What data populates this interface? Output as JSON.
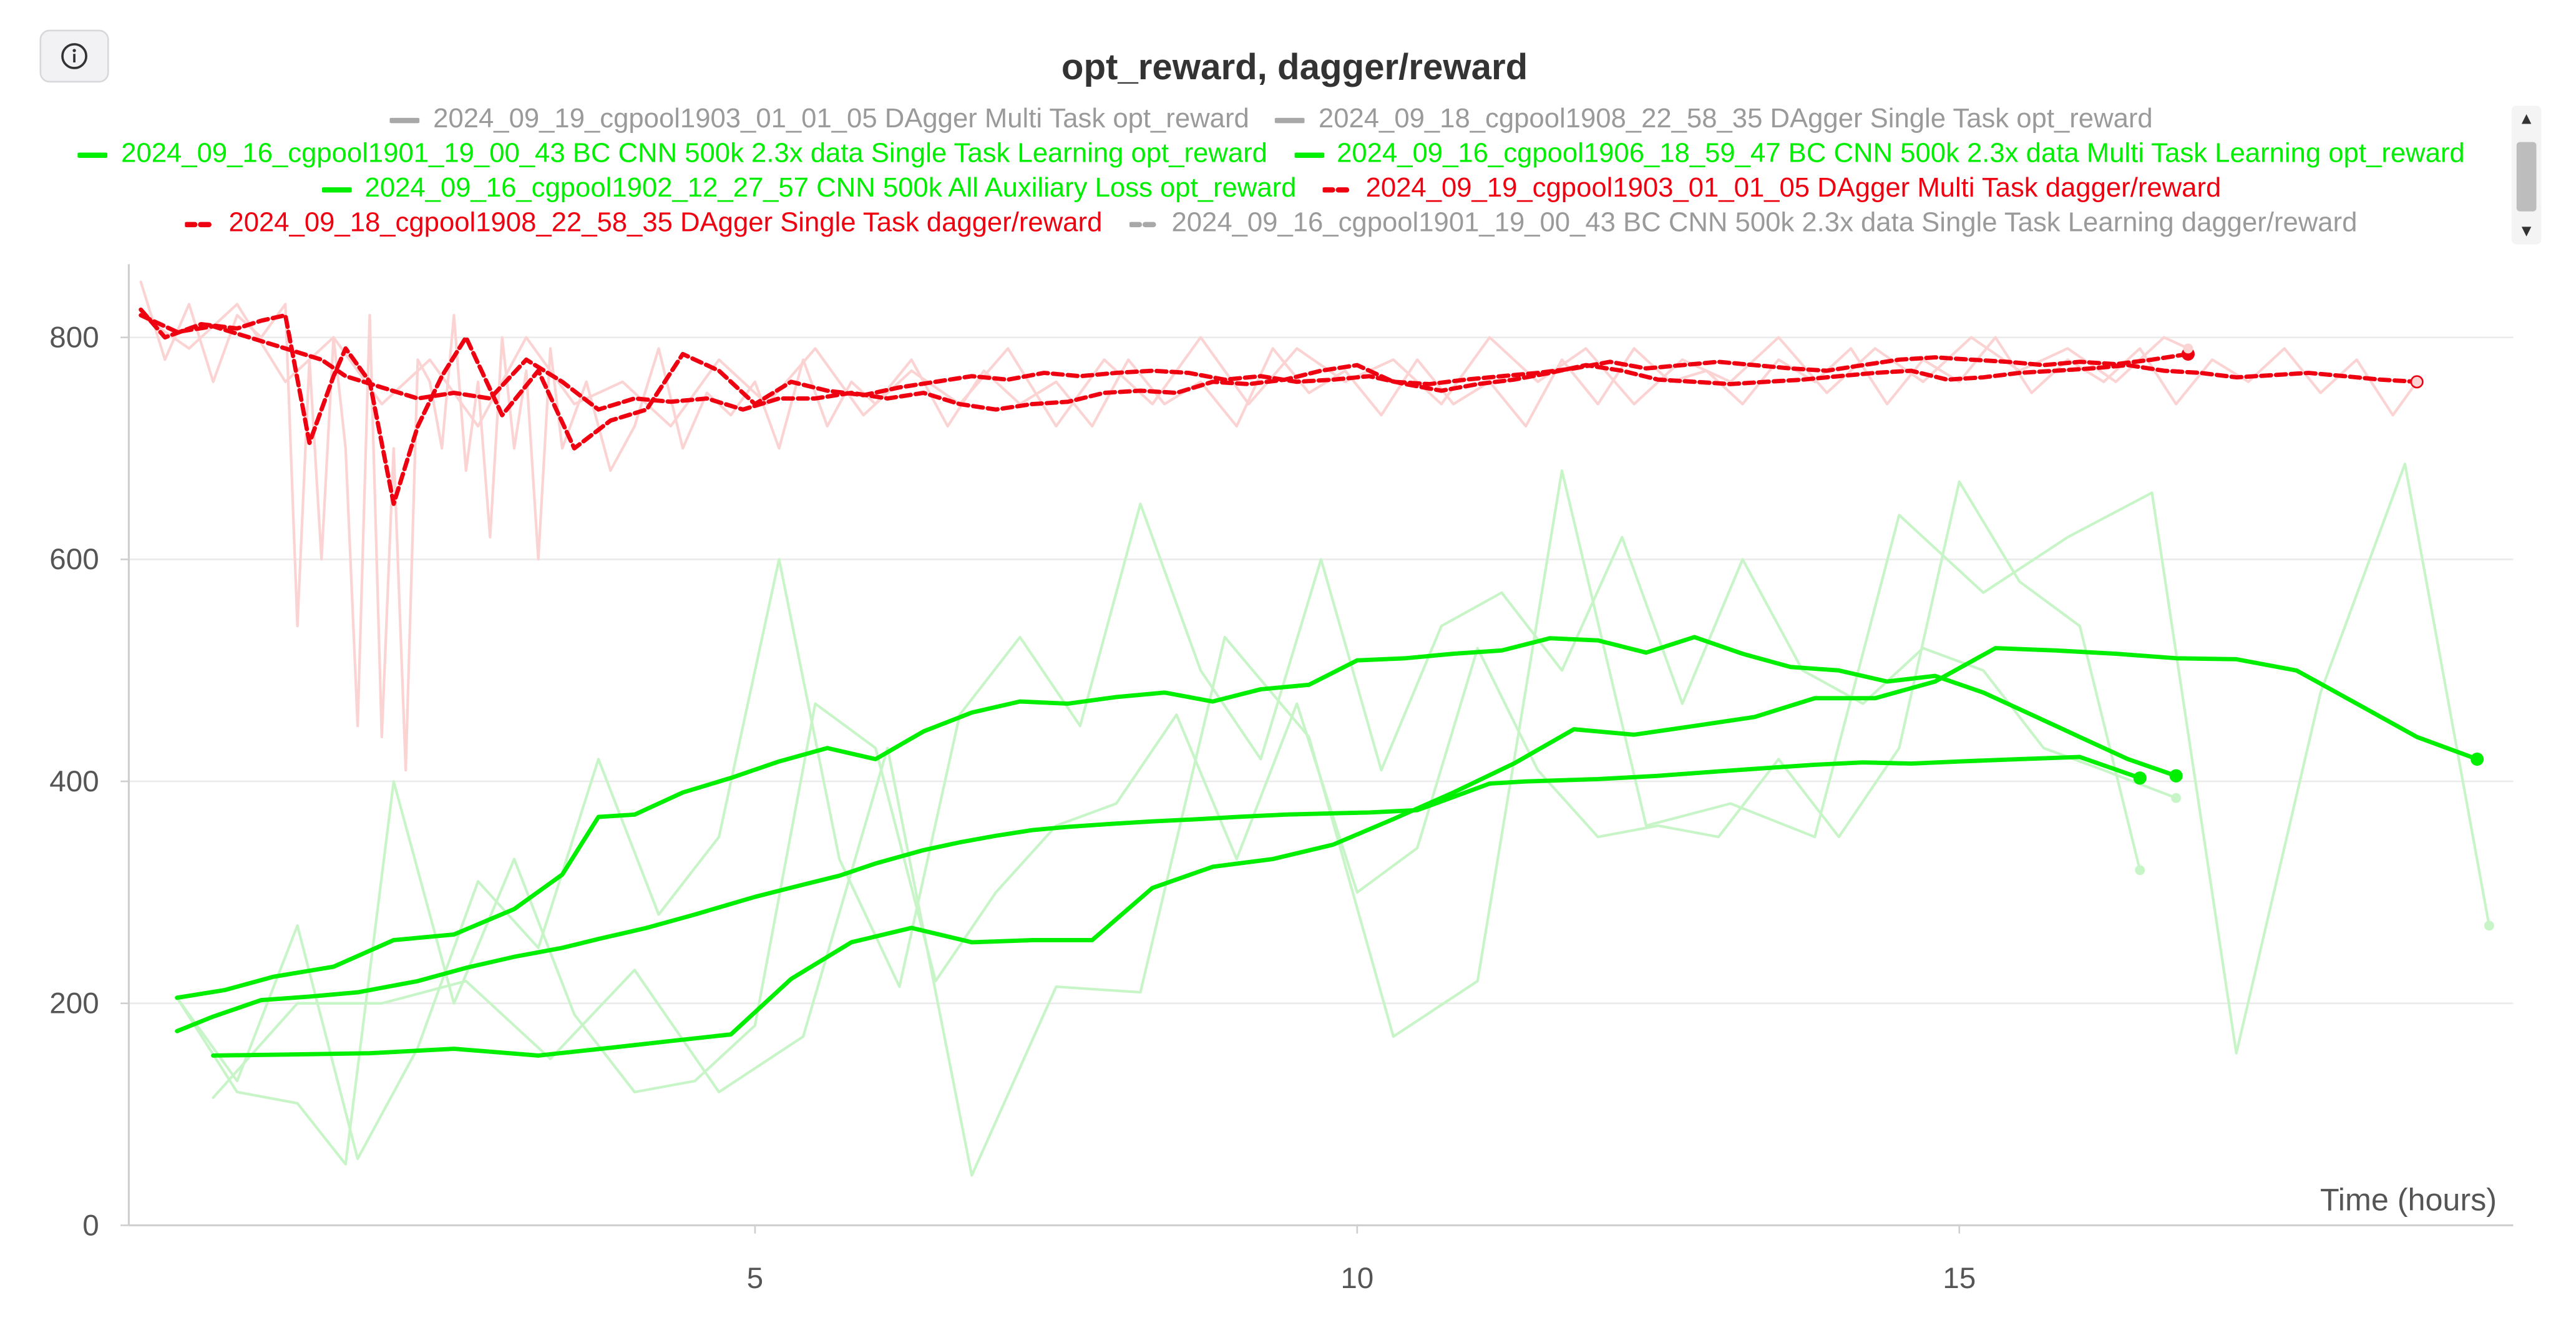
{
  "panel": {
    "title": "opt_reward, dagger/reward",
    "info_button": "info-icon"
  },
  "colors": {
    "green": "#00ee00",
    "red": "#ee0010",
    "gray": "#b0b0b0",
    "green_raw": "#c8f5c8",
    "red_raw": "#fbd3d3"
  },
  "legend": [
    {
      "label": "2024_09_19_cgpool1903_01_01_05 DAgger Multi Task opt_reward",
      "color": "#a8a8a8",
      "style": "solid",
      "hidden": true
    },
    {
      "label": "2024_09_18_cgpool1908_22_58_35 DAgger Single Task opt_reward",
      "color": "#a8a8a8",
      "style": "solid",
      "hidden": true
    },
    {
      "label": "2024_09_16_cgpool1901_19_00_43 BC CNN 500k 2.3x data Single Task Learning opt_reward",
      "color": "#00ee00",
      "style": "solid",
      "hidden": false
    },
    {
      "label": "2024_09_16_cgpool1906_18_59_47 BC CNN 500k 2.3x data Multi Task Learning opt_reward",
      "color": "#00ee00",
      "style": "solid",
      "hidden": false
    },
    {
      "label": "2024_09_16_cgpool1902_12_27_57 CNN 500k All Auxiliary Loss opt_reward",
      "color": "#00ee00",
      "style": "solid",
      "hidden": false
    },
    {
      "label": "2024_09_19_cgpool1903_01_01_05 DAgger Multi Task dagger/reward",
      "color": "#ee0010",
      "style": "dashed",
      "hidden": false
    },
    {
      "label": "2024_09_18_cgpool1908_22_58_35 DAgger Single Task dagger/reward",
      "color": "#ee0010",
      "style": "dashed",
      "hidden": false
    },
    {
      "label": "2024_09_16_cgpool1901_19_00_43 BC CNN 500k 2.3x data Single Task Learning dagger/reward",
      "color": "#a8a8a8",
      "style": "dashed",
      "hidden": true
    }
  ],
  "chart_data": {
    "type": "line",
    "title": "opt_reward, dagger/reward",
    "xlabel": "Time (hours)",
    "ylabel": "",
    "xlim": [
      -0.2,
      19.6
    ],
    "ylim": [
      0,
      860
    ],
    "xticks": [
      5,
      10,
      15
    ],
    "yticks": [
      0,
      200,
      400,
      600,
      800
    ],
    "grid": true,
    "legend_position": "top",
    "series": [
      {
        "name": "2024_09_16_cgpool1901_19_00_43 BC CNN 500k 2.3x data Single Task Learning opt_reward",
        "kind": "smoothed",
        "color": "#00ee00",
        "style": "solid",
        "x": [
          0.2,
          0.5,
          0.9,
          1.3,
          1.7,
          2.2,
          2.6,
          3.0,
          3.4,
          3.7,
          4.1,
          4.5,
          5.0,
          5.4,
          5.7,
          6.0,
          6.4,
          6.7,
          7.0,
          7.3,
          7.6,
          8.0,
          8.3,
          8.7,
          9.0,
          9.4,
          9.7,
          10.1,
          10.5,
          10.8,
          11.1,
          11.4,
          11.7,
          12.0,
          12.5,
          13.0,
          13.4,
          13.8,
          14.2,
          14.6,
          15.0,
          15.5,
          16.0,
          16.5
        ],
        "y": [
          175,
          188,
          203,
          206,
          210,
          220,
          232,
          242,
          250,
          258,
          268,
          280,
          296,
          307,
          315,
          326,
          338,
          345,
          351,
          356,
          359,
          362,
          364,
          366,
          368,
          370,
          371,
          372,
          374,
          386,
          398,
          400,
          401,
          402,
          405,
          409,
          412,
          415,
          417,
          416,
          418,
          420,
          422,
          403
        ]
      },
      {
        "name": "2024_09_16_cgpool1906_18_59_47 BC CNN 500k 2.3x data Multi Task Learning opt_reward",
        "kind": "smoothed",
        "color": "#00ee00",
        "style": "solid",
        "x": [
          0.5,
          1.2,
          1.8,
          2.5,
          3.2,
          3.8,
          4.3,
          4.8,
          5.3,
          5.8,
          6.3,
          6.8,
          7.3,
          7.8,
          8.3,
          8.8,
          9.3,
          9.8,
          10.3,
          10.8,
          11.3,
          11.8,
          12.3,
          12.8,
          13.3,
          13.8,
          14.3,
          14.8,
          15.3,
          15.8,
          16.3,
          16.8,
          17.3,
          17.8,
          18.3,
          18.8,
          19.3
        ],
        "y": [
          153,
          154,
          155,
          159,
          153,
          160,
          166,
          172,
          222,
          255,
          268,
          255,
          257,
          257,
          304,
          323,
          330,
          343,
          366,
          390,
          416,
          447,
          442,
          450,
          458,
          475,
          475,
          490,
          520,
          518,
          515,
          511,
          510,
          500,
          470,
          440,
          420
        ]
      },
      {
        "name": "2024_09_16_cgpool1902_12_27_57 CNN 500k All Auxiliary Loss opt_reward",
        "kind": "smoothed",
        "color": "#00ee00",
        "style": "solid",
        "x": [
          0.2,
          0.6,
          1.0,
          1.5,
          2.0,
          2.5,
          3.0,
          3.4,
          3.7,
          4.0,
          4.4,
          4.8,
          5.2,
          5.6,
          6.0,
          6.4,
          6.8,
          7.2,
          7.6,
          8.0,
          8.4,
          8.8,
          9.2,
          9.6,
          10.0,
          10.4,
          10.8,
          11.2,
          11.6,
          12.0,
          12.4,
          12.8,
          13.2,
          13.6,
          14.0,
          14.4,
          14.8,
          15.2,
          15.6,
          16.0,
          16.4,
          16.8
        ],
        "y": [
          205,
          212,
          224,
          233,
          257,
          262,
          285,
          316,
          368,
          370,
          390,
          403,
          418,
          430,
          420,
          445,
          462,
          472,
          470,
          476,
          480,
          472,
          483,
          487,
          509,
          511,
          515,
          518,
          529,
          527,
          516,
          530,
          515,
          503,
          500,
          490,
          495,
          480,
          460,
          440,
          420,
          405
        ]
      },
      {
        "name": "2024_09_16_cgpool1901_19_00_43 BC CNN 500k 2.3x data Single Task Learning opt_reward (raw)",
        "kind": "raw",
        "color": "#c8f5c8",
        "style": "solid",
        "x": [
          0.2,
          0.7,
          1.2,
          1.6,
          2.0,
          2.5,
          3.0,
          3.5,
          4.0,
          4.5,
          5.0,
          5.5,
          6.0,
          6.5,
          7.0,
          7.5,
          8.0,
          8.5,
          9.0,
          9.5,
          10.0,
          10.5,
          11.0,
          11.5,
          12.0,
          12.5,
          13.0,
          13.5,
          14.0,
          14.5,
          15.0,
          15.5,
          16.0,
          16.5
        ],
        "y": [
          205,
          120,
          110,
          55,
          400,
          200,
          330,
          190,
          120,
          130,
          180,
          470,
          430,
          220,
          300,
          360,
          380,
          460,
          330,
          470,
          300,
          340,
          520,
          410,
          350,
          360,
          350,
          420,
          350,
          430,
          670,
          580,
          540,
          320
        ]
      },
      {
        "name": "2024_09_16_cgpool1906_18_59_47 BC CNN 500k 2.3x data Multi Task Learning opt_reward (raw)",
        "kind": "raw",
        "color": "#c8f5c8",
        "style": "solid",
        "x": [
          0.5,
          1.2,
          1.9,
          2.6,
          3.3,
          4.0,
          4.7,
          5.4,
          6.1,
          6.8,
          7.5,
          8.2,
          8.9,
          9.6,
          10.3,
          11.0,
          11.7,
          12.4,
          13.1,
          13.8,
          14.5,
          15.2,
          15.9,
          16.6,
          17.3,
          18.0,
          18.7,
          19.4
        ],
        "y": [
          115,
          200,
          200,
          220,
          150,
          230,
          120,
          170,
          430,
          45,
          215,
          210,
          530,
          440,
          170,
          220,
          680,
          360,
          380,
          350,
          640,
          570,
          620,
          660,
          155,
          480,
          686,
          270
        ]
      },
      {
        "name": "2024_09_16_cgpool1902_12_27_57 CNN 500k All Auxiliary Loss opt_reward (raw)",
        "kind": "raw",
        "color": "#c8f5c8",
        "style": "solid",
        "x": [
          0.2,
          0.7,
          1.2,
          1.7,
          2.2,
          2.7,
          3.2,
          3.7,
          4.2,
          4.7,
          5.2,
          5.7,
          6.2,
          6.7,
          7.2,
          7.7,
          8.2,
          8.7,
          9.2,
          9.7,
          10.2,
          10.7,
          11.2,
          11.7,
          12.2,
          12.7,
          13.2,
          13.7,
          14.2,
          14.7,
          15.2,
          15.7,
          16.2,
          16.8
        ],
        "y": [
          205,
          130,
          270,
          60,
          160,
          310,
          250,
          420,
          280,
          350,
          600,
          330,
          215,
          460,
          530,
          450,
          650,
          500,
          420,
          600,
          410,
          540,
          570,
          500,
          620,
          470,
          600,
          500,
          470,
          520,
          500,
          430,
          410,
          385
        ]
      },
      {
        "name": "2024_09_19_cgpool1903_01_01_05 DAgger Multi Task dagger/reward",
        "kind": "smoothed",
        "color": "#ee0010",
        "style": "dashed",
        "x": [
          -0.1,
          0.2,
          0.5,
          0.8,
          1.1,
          1.4,
          1.6,
          1.9,
          2.2,
          2.5,
          2.8,
          3.1,
          3.4,
          3.7,
          4.0,
          4.3,
          4.6,
          4.9,
          5.2,
          5.5,
          5.8,
          6.1,
          6.4,
          6.7,
          7.0,
          7.3,
          7.6,
          7.9,
          8.2,
          8.5,
          8.8,
          9.1,
          9.4,
          9.7,
          10.0,
          10.3,
          10.6,
          10.9,
          11.2,
          11.5,
          11.8,
          12.1,
          12.4,
          12.7,
          13.0,
          13.3,
          13.6,
          13.9,
          14.2,
          14.5,
          14.8,
          15.1,
          15.4,
          15.7,
          16.0,
          16.3,
          16.6,
          16.9
        ],
        "y": [
          820,
          805,
          810,
          800,
          790,
          780,
          765,
          755,
          745,
          750,
          745,
          780,
          760,
          735,
          745,
          742,
          745,
          735,
          745,
          745,
          750,
          745,
          750,
          740,
          735,
          740,
          742,
          750,
          752,
          750,
          760,
          758,
          762,
          770,
          775,
          760,
          758,
          762,
          765,
          768,
          772,
          778,
          772,
          775,
          778,
          775,
          772,
          770,
          775,
          780,
          782,
          780,
          778,
          775,
          778,
          776,
          780,
          785
        ]
      },
      {
        "name": "2024_09_18_cgpool1908_22_58_35 DAgger Single Task dagger/reward",
        "kind": "smoothed",
        "color": "#ee0010",
        "style": "dashed",
        "x": [
          -0.1,
          0.1,
          0.4,
          0.7,
          0.9,
          1.1,
          1.3,
          1.5,
          1.6,
          1.8,
          2.0,
          2.2,
          2.4,
          2.6,
          2.9,
          3.2,
          3.5,
          3.8,
          4.1,
          4.4,
          4.7,
          5.0,
          5.3,
          5.6,
          5.9,
          6.2,
          6.5,
          6.8,
          7.1,
          7.4,
          7.7,
          8.0,
          8.3,
          8.6,
          8.9,
          9.2,
          9.5,
          9.8,
          10.1,
          10.4,
          10.7,
          11.0,
          11.3,
          11.6,
          11.9,
          12.2,
          12.5,
          12.8,
          13.1,
          13.4,
          13.7,
          14.0,
          14.3,
          14.6,
          14.9,
          15.2,
          15.5,
          15.8,
          16.1,
          16.4,
          16.7,
          17.0,
          17.3,
          17.6,
          17.9,
          18.2,
          18.5,
          18.8
        ],
        "y": [
          825,
          800,
          812,
          808,
          815,
          820,
          705,
          765,
          790,
          760,
          650,
          720,
          765,
          800,
          730,
          770,
          700,
          725,
          735,
          785,
          770,
          740,
          760,
          752,
          748,
          755,
          760,
          765,
          762,
          768,
          765,
          768,
          770,
          768,
          762,
          765,
          760,
          762,
          765,
          758,
          752,
          758,
          762,
          768,
          775,
          770,
          762,
          760,
          758,
          760,
          762,
          765,
          768,
          770,
          762,
          764,
          768,
          770,
          772,
          775,
          770,
          768,
          764,
          766,
          768,
          765,
          762,
          760
        ]
      },
      {
        "name": "2024_09_18_cgpool1908_22_58_35 DAgger Single Task dagger/reward (raw)",
        "kind": "raw",
        "color": "#fbd3d3",
        "style": "solid",
        "x": [
          -0.1,
          0.1,
          0.3,
          0.5,
          0.7,
          0.9,
          1.1,
          1.2,
          1.3,
          1.4,
          1.5,
          1.6,
          1.7,
          1.8,
          1.9,
          2.0,
          2.1,
          2.2,
          2.3,
          2.4,
          2.5,
          2.6,
          2.7,
          2.8,
          2.9,
          3.0,
          3.1,
          3.2,
          3.3,
          3.4,
          3.6,
          3.8,
          4.0,
          4.2,
          4.4,
          4.6,
          4.8,
          5.0,
          5.2,
          5.4,
          5.6,
          5.8,
          6.0,
          6.3,
          6.6,
          6.9,
          7.2,
          7.5,
          7.8,
          8.1,
          8.4,
          8.7,
          9.0,
          9.3,
          9.6,
          9.9,
          10.2,
          10.5,
          10.8,
          11.1,
          11.4,
          11.7,
          12.0,
          12.3,
          12.6,
          12.9,
          13.2,
          13.5,
          13.8,
          14.1,
          14.4,
          14.7,
          15.0,
          15.3,
          15.6,
          15.9,
          16.2,
          16.5,
          16.8,
          17.1,
          17.4,
          17.7,
          18.0,
          18.3,
          18.6,
          18.8
        ],
        "y": [
          850,
          780,
          830,
          760,
          820,
          800,
          830,
          540,
          780,
          600,
          800,
          700,
          450,
          820,
          440,
          700,
          410,
          780,
          760,
          700,
          820,
          680,
          760,
          620,
          800,
          700,
          770,
          600,
          790,
          700,
          760,
          680,
          720,
          790,
          700,
          750,
          730,
          760,
          700,
          780,
          720,
          760,
          740,
          780,
          720,
          770,
          740,
          760,
          720,
          780,
          740,
          760,
          720,
          790,
          750,
          770,
          730,
          780,
          740,
          760,
          720,
          780,
          740,
          790,
          760,
          770,
          740,
          780,
          760,
          790,
          740,
          780,
          760,
          800,
          750,
          780,
          760,
          790,
          740,
          780,
          760,
          790,
          750,
          780,
          730,
          760
        ]
      },
      {
        "name": "2024_09_19_cgpool1903_01_01_05 DAgger Multi Task dagger/reward (raw)",
        "kind": "raw",
        "color": "#fbd3d3",
        "style": "solid",
        "x": [
          -0.1,
          0.3,
          0.7,
          1.1,
          1.5,
          1.9,
          2.3,
          2.7,
          3.1,
          3.5,
          3.9,
          4.3,
          4.7,
          5.1,
          5.5,
          5.9,
          6.3,
          6.7,
          7.1,
          7.5,
          7.9,
          8.3,
          8.7,
          9.1,
          9.5,
          9.9,
          10.3,
          10.7,
          11.1,
          11.5,
          11.9,
          12.3,
          12.7,
          13.1,
          13.5,
          13.9,
          14.3,
          14.7,
          15.1,
          15.5,
          15.9,
          16.3,
          16.7,
          16.9
        ],
        "y": [
          820,
          790,
          830,
          760,
          800,
          740,
          780,
          720,
          800,
          740,
          760,
          720,
          780,
          740,
          790,
          730,
          770,
          740,
          790,
          720,
          780,
          740,
          800,
          740,
          790,
          760,
          780,
          740,
          800,
          760,
          790,
          740,
          780,
          760,
          800,
          750,
          790,
          760,
          800,
          770,
          790,
          760,
          800,
          790
        ]
      }
    ]
  }
}
